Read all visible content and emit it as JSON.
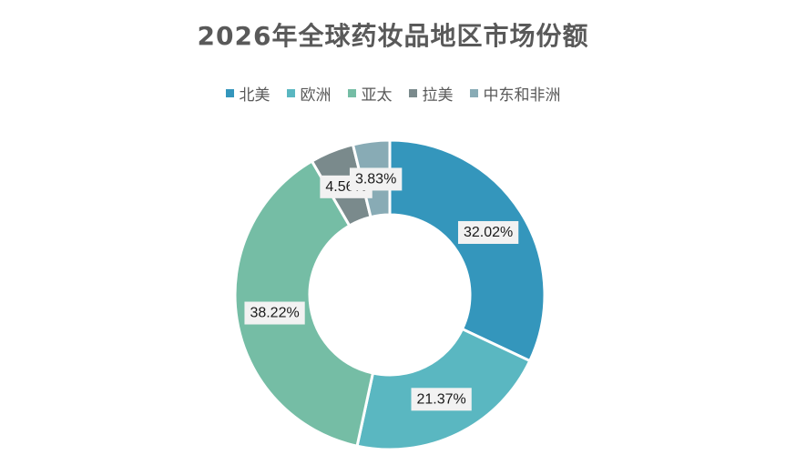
{
  "chart_data": {
    "type": "pie",
    "variant": "donut",
    "title": "2026年全球药妆品地区市场份额",
    "legend_position": "top",
    "categories": [
      "北美",
      "欧洲",
      "亚太",
      "拉美",
      "中东和非洲"
    ],
    "values": [
      32.02,
      21.37,
      38.22,
      4.56,
      3.83
    ],
    "labels": [
      "32.02%",
      "21.37%",
      "38.22%",
      "4.56%",
      "3.83%"
    ],
    "colors": [
      "#3496bc",
      "#5ab7c1",
      "#75bda5",
      "#7a8a8c",
      "#88abb5"
    ],
    "unit": "%"
  }
}
